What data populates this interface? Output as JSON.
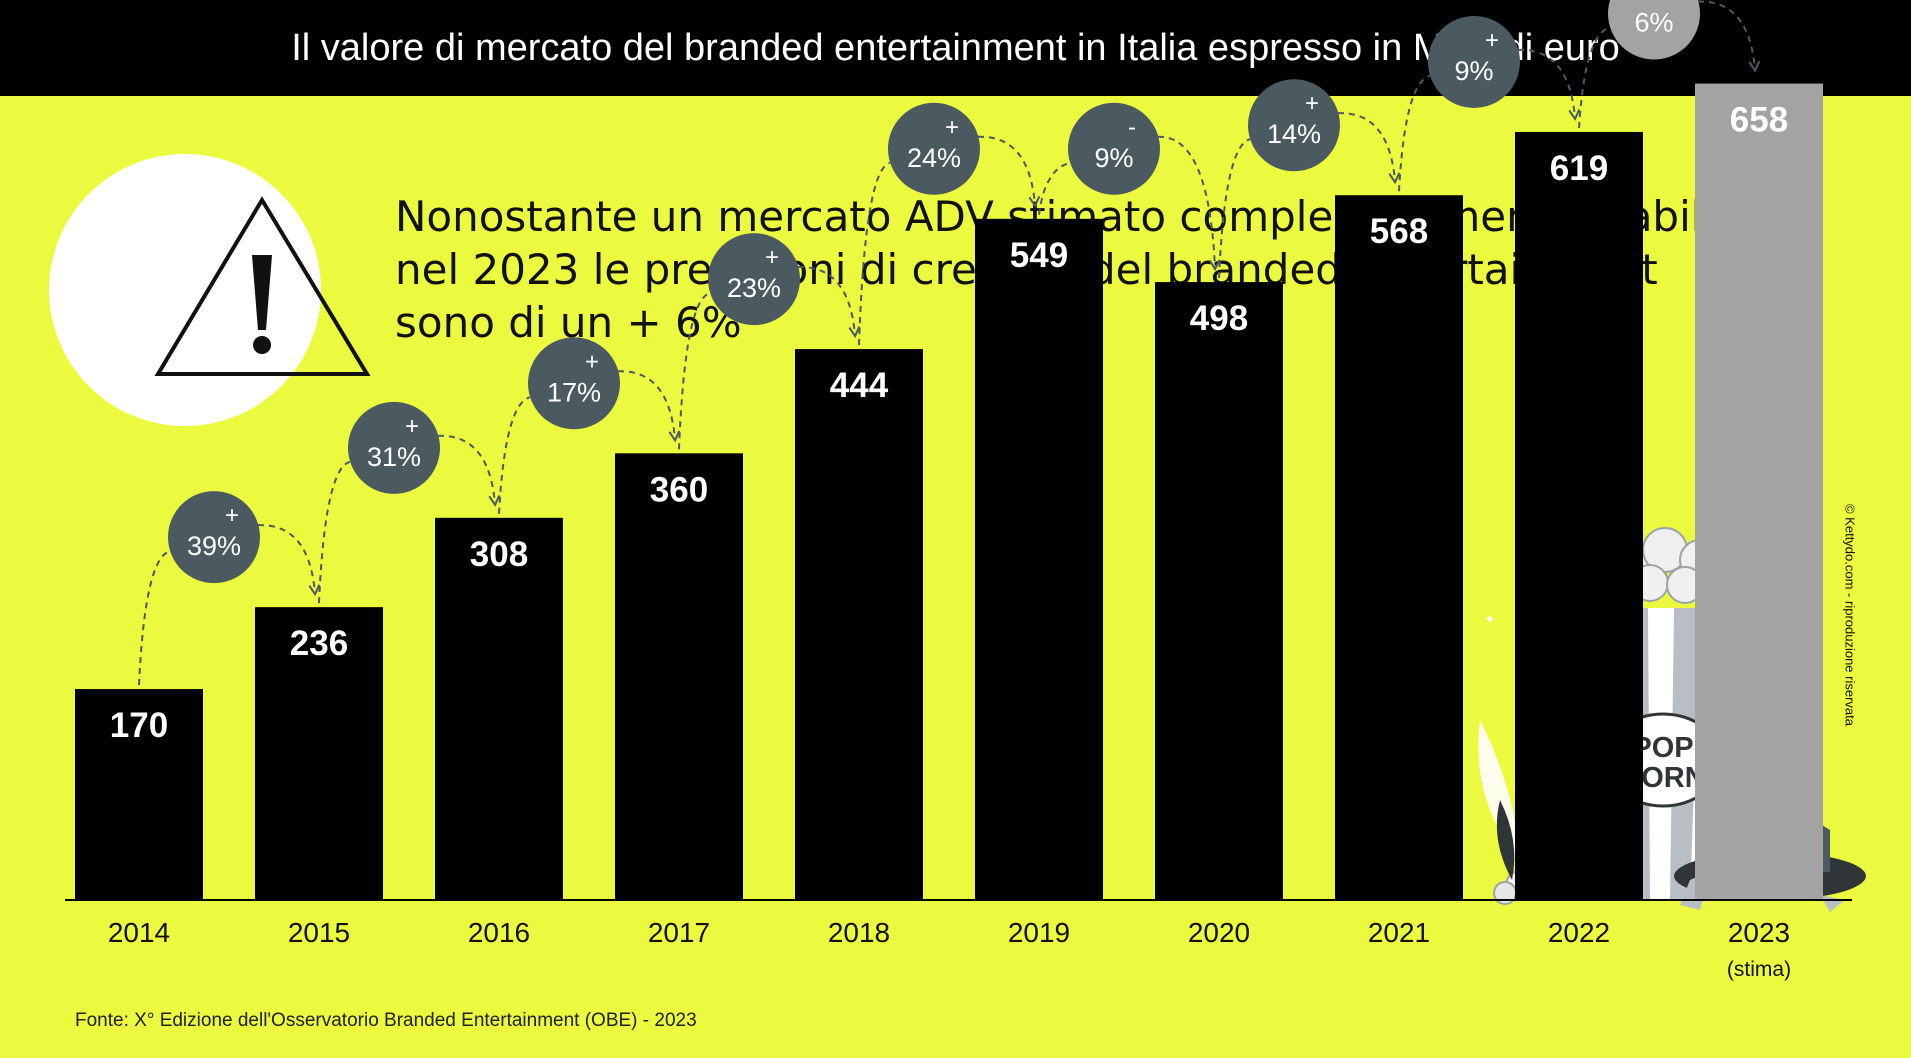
{
  "header": {
    "title": "Il valore di mercato del branded entertainment in Italia espresso in MLN di euro"
  },
  "headline": {
    "lines": [
      "Nonostante un mercato ADV stimato complessivamente stabile,",
      "nel 2023 le previsioni di crescita del branded entertainment",
      "sono di un + 6%"
    ]
  },
  "chart_data": {
    "type": "bar",
    "title": "Il valore di mercato del branded entertainment in Italia espresso in MLN di euro",
    "categories": [
      "2014",
      "2015",
      "2016",
      "2017",
      "2018",
      "2019",
      "2020",
      "2021",
      "2022",
      "2023"
    ],
    "category_sublabels": [
      "",
      "",
      "",
      "",
      "",
      "",
      "",
      "",
      "",
      "(stima)"
    ],
    "values": [
      170,
      236,
      308,
      360,
      444,
      549,
      498,
      568,
      619,
      658
    ],
    "estimated": [
      false,
      false,
      false,
      false,
      false,
      false,
      false,
      false,
      false,
      true
    ],
    "changes": [
      {
        "sign": "+",
        "value": "39%"
      },
      {
        "sign": "+",
        "value": "31%"
      },
      {
        "sign": "+",
        "value": "17%"
      },
      {
        "sign": "+",
        "value": "23%"
      },
      {
        "sign": "+",
        "value": "24%"
      },
      {
        "sign": "-",
        "value": "9%"
      },
      {
        "sign": "+",
        "value": "14%"
      },
      {
        "sign": "+",
        "value": "9%"
      },
      {
        "sign": "+",
        "value": "6%"
      }
    ],
    "colors": {
      "bar": "#000000",
      "bar_estimate": "#a3a3a3",
      "bubble": "#4b5a60",
      "bubble_estimate": "#a3a3a3",
      "value_text": "#ffffff",
      "background": "#ecfa3f"
    },
    "popcorn_label": [
      "POP",
      "CORN"
    ],
    "grid": false,
    "legend": "none"
  },
  "icons": {
    "warning": "warning-triangle-icon",
    "popcorn": "popcorn-illustration"
  },
  "source": "Fonte: X° Edizione dell'Osservatorio Branded Entertainment (OBE) - 2023",
  "copyright": "© Kettydo.com - riproduzione riservata"
}
